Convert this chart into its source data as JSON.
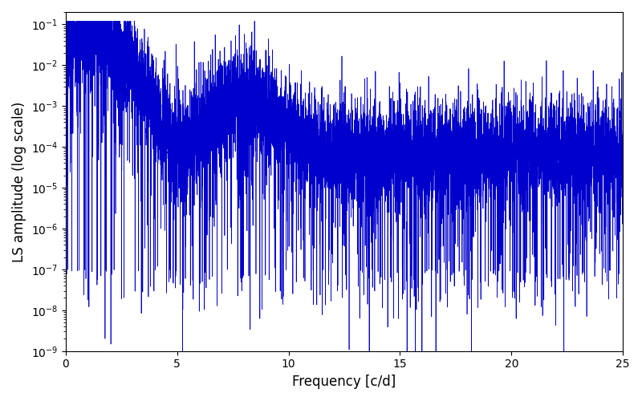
{
  "xlabel": "Frequency [c/d]",
  "ylabel": "LS amplitude (log scale)",
  "xlim": [
    0,
    25
  ],
  "ylim": [
    1e-09,
    0.2
  ],
  "line_color": "#0000cc",
  "line_width": 0.5,
  "yscale": "log",
  "figsize": [
    8.0,
    5.0
  ],
  "dpi": 100,
  "seed": 7,
  "n_points": 8000,
  "freq_max": 25.0
}
